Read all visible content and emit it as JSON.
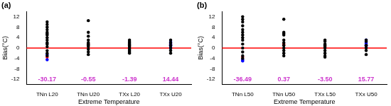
{
  "chart_data": [
    {
      "type": "scatter",
      "title": "(a)",
      "x_label": "Extreme Temperature",
      "y_label": "Bias(°C)",
      "categories": [
        "TNn L20",
        "TNn U20",
        "TXx L20",
        "TXx U20"
      ],
      "series": [
        {
          "color": "#000000",
          "marker": "circle",
          "values": [
            [
              10,
              9,
              8,
              7,
              6,
              5.5,
              5,
              4,
              3,
              2,
              1.5,
              0.5,
              -1,
              -2,
              -3
            ],
            [
              10.5,
              6,
              4.5,
              3,
              2,
              1.5,
              1,
              0.5,
              -0.5,
              -1.5,
              -2.5
            ],
            [
              3,
              2.5,
              2,
              1.5,
              1,
              0.5,
              0,
              -0.5,
              -1,
              -1.5,
              -2
            ],
            [
              3,
              2,
              1,
              0,
              -1,
              -2
            ]
          ]
        },
        {
          "color": "#0000ff",
          "marker": "circle",
          "values": [
            [
              -4.5,
              -2.5
            ],
            [],
            [],
            [
              2.5,
              2,
              1.5,
              1,
              0.5,
              0
            ]
          ]
        },
        {
          "color": "#ff0000",
          "marker": "circle",
          "values": [
            [
              -3.5
            ],
            [
              1.5
            ],
            [
              0.5
            ],
            [
              1.5
            ]
          ]
        }
      ],
      "ylim": [
        -14,
        14
      ],
      "yticks": [
        -12,
        -8,
        -4,
        0,
        4,
        8,
        12
      ],
      "grid": false,
      "reference_line": {
        "y": 0,
        "color": "#ff0000"
      },
      "annotations": [
        {
          "category": "TNn L20",
          "text": "-30.17",
          "color": "#cc33cc"
        },
        {
          "category": "TNn U20",
          "text": "-0.55",
          "color": "#cc33cc"
        },
        {
          "category": "TXx L20",
          "text": "-1.39",
          "color": "#cc33cc"
        },
        {
          "category": "TXx U20",
          "text": "14.44",
          "color": "#cc33cc"
        }
      ]
    },
    {
      "type": "scatter",
      "title": "(b)",
      "x_label": "Extreme Temperature",
      "y_label": "Bias(°C)",
      "categories": [
        "TNn L50",
        "TNn U50",
        "TXx L50",
        "TXx U50"
      ],
      "series": [
        {
          "color": "#000000",
          "marker": "circle",
          "values": [
            [
              12,
              11,
              10,
              8.5,
              7,
              6,
              5,
              4,
              3,
              1.5,
              0,
              -1.5,
              -3,
              -4
            ],
            [
              11,
              6,
              5.5,
              5,
              3,
              2,
              1,
              0,
              -1,
              -2,
              -3
            ],
            [
              3,
              2.5,
              1.5,
              1,
              0.5,
              0,
              -1,
              -2,
              -3,
              -3.5
            ],
            [
              3,
              2.5,
              1,
              0,
              -1,
              -2.5
            ]
          ]
        },
        {
          "color": "#0000ff",
          "marker": "circle",
          "values": [
            [
              -5,
              -4.5
            ],
            [],
            [],
            [
              3,
              2.5,
              2,
              1.5,
              1,
              0.5
            ]
          ]
        },
        {
          "color": "#ff0000",
          "marker": "circle",
          "values": [
            [
              -3.5
            ],
            [
              1.5
            ],
            [
              0.5
            ],
            [
              1
            ]
          ]
        }
      ],
      "ylim": [
        -14,
        14
      ],
      "yticks": [
        -12,
        -8,
        -4,
        0,
        4,
        8,
        12
      ],
      "grid": false,
      "reference_line": {
        "y": 0,
        "color": "#ff0000"
      },
      "annotations": [
        {
          "category": "TNn L50",
          "text": "-36.49",
          "color": "#cc33cc"
        },
        {
          "category": "TNn U50",
          "text": "0.37",
          "color": "#cc33cc"
        },
        {
          "category": "TXx L50",
          "text": "-3.50",
          "color": "#cc33cc"
        },
        {
          "category": "TXx U50",
          "text": "15.77",
          "color": "#cc33cc"
        }
      ]
    }
  ]
}
